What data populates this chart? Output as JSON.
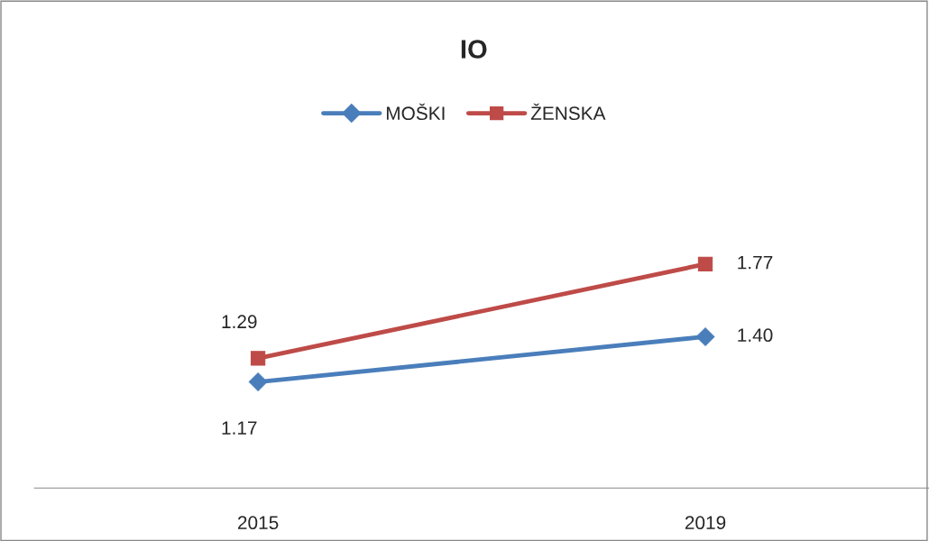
{
  "chart_data": {
    "type": "line",
    "title": "IO",
    "categories": [
      "2015",
      "2019"
    ],
    "series": [
      {
        "name": "MOŠKI",
        "color": "#4a7ebb",
        "values": [
          1.17,
          1.4
        ],
        "value_labels": [
          "1.17",
          "1.40"
        ],
        "marker": "diamond"
      },
      {
        "name": "ŽENSKA",
        "color": "#be4b48",
        "values": [
          1.29,
          1.77
        ],
        "value_labels": [
          "1.29",
          "1.77"
        ],
        "marker": "square"
      }
    ],
    "tick_labels": "x",
    "legend": "top",
    "grid": false
  }
}
